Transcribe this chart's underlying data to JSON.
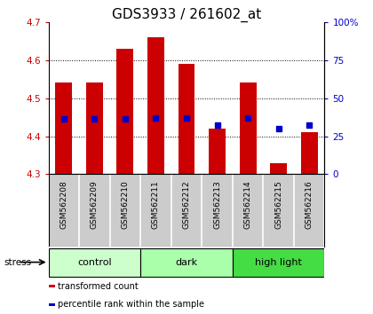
{
  "title": "GDS3933 / 261602_at",
  "samples": [
    "GSM562208",
    "GSM562209",
    "GSM562210",
    "GSM562211",
    "GSM562212",
    "GSM562213",
    "GSM562214",
    "GSM562215",
    "GSM562216"
  ],
  "bar_tops": [
    4.54,
    4.54,
    4.63,
    4.66,
    4.59,
    4.42,
    4.54,
    4.33,
    4.41
  ],
  "bar_bottom": 4.3,
  "blue_vals": [
    4.445,
    4.445,
    4.445,
    4.447,
    4.447,
    4.43,
    4.447,
    4.421,
    4.43
  ],
  "ylim": [
    4.3,
    4.7
  ],
  "yticks_left": [
    4.3,
    4.4,
    4.5,
    4.6,
    4.7
  ],
  "yticks_right_vals": [
    0,
    25,
    50,
    75,
    100
  ],
  "bar_color": "#cc0000",
  "blue_color": "#0000cc",
  "bar_width": 0.55,
  "groups": [
    {
      "label": "control",
      "indices": [
        0,
        1,
        2
      ],
      "color": "#ccffcc"
    },
    {
      "label": "dark",
      "indices": [
        3,
        4,
        5
      ],
      "color": "#aaffaa"
    },
    {
      "label": "high light",
      "indices": [
        6,
        7,
        8
      ],
      "color": "#44dd44"
    }
  ],
  "stress_label": "stress",
  "legend_items": [
    {
      "label": "transformed count",
      "color": "#cc0000"
    },
    {
      "label": "percentile rank within the sample",
      "color": "#0000cc"
    }
  ],
  "bg_color": "#ffffff",
  "tick_label_bg": "#cccccc",
  "title_fontsize": 11,
  "tick_fontsize": 7.5,
  "sample_fontsize": 6.5
}
